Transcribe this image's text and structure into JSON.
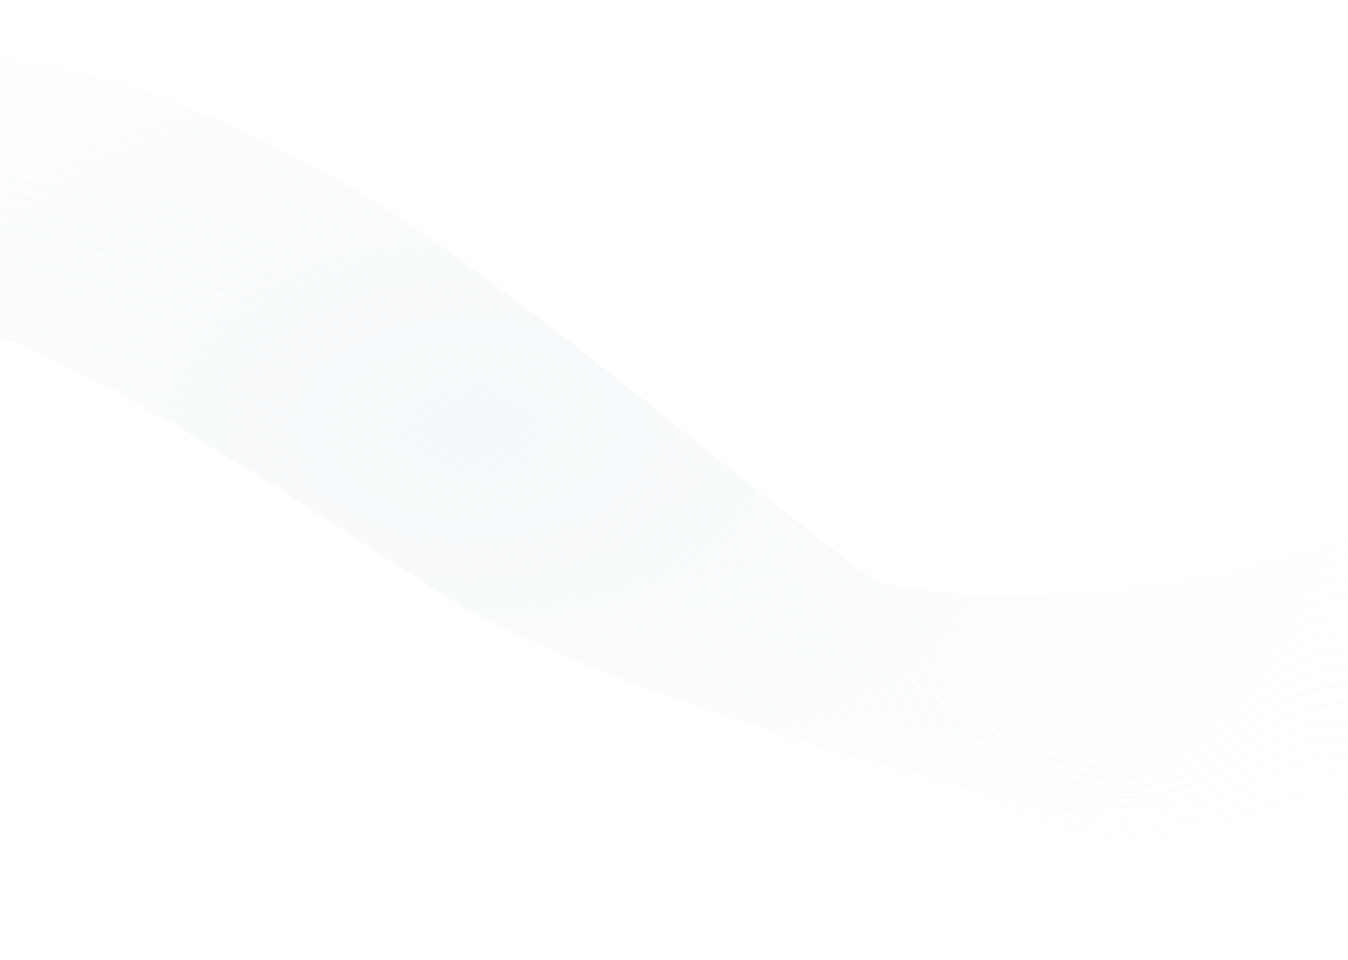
{
  "page": {
    "background_color": "#ffffff",
    "wave_tint_color": "#eef4f7",
    "wave_line_color": "#e6edf1"
  }
}
